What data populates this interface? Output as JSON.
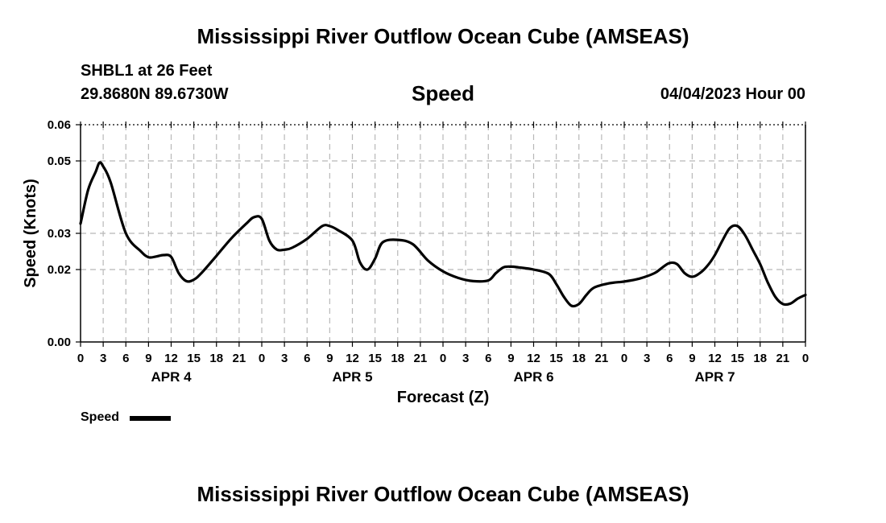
{
  "header": {
    "title": "Mississippi River Outflow Ocean Cube (AMSEAS)",
    "station": "SHBL1 at 26 Feet",
    "coords": "29.8680N  89.6730W",
    "variable": "Speed",
    "datetime": "04/04/2023 Hour 00"
  },
  "footer": {
    "title": "Mississippi River Outflow Ocean Cube (AMSEAS)"
  },
  "legend": {
    "label": "Speed"
  },
  "chart_data": {
    "type": "line",
    "title": "Speed",
    "xlabel": "Forecast (Z)",
    "ylabel": "Speed (Knots)",
    "ylim": [
      0,
      0.06
    ],
    "xlim": [
      0,
      96
    ],
    "grid": true,
    "y_ticks": [
      0,
      0.02,
      0.03,
      0.05,
      0.06
    ],
    "y_tick_labels": [
      "0.00",
      "0.02",
      "0.03",
      "0.05",
      "0.06"
    ],
    "x_ticks": [
      0,
      3,
      6,
      9,
      12,
      15,
      18,
      21,
      24,
      27,
      30,
      33,
      36,
      39,
      42,
      45,
      48,
      51,
      54,
      57,
      60,
      63,
      66,
      69,
      72,
      75,
      78,
      81,
      84,
      87,
      90,
      93,
      96
    ],
    "x_tick_labels": [
      "0",
      "3",
      "6",
      "9",
      "12",
      "15",
      "18",
      "21",
      "0",
      "3",
      "6",
      "9",
      "12",
      "15",
      "18",
      "21",
      "0",
      "3",
      "6",
      "9",
      "12",
      "15",
      "18",
      "21",
      "0",
      "3",
      "6",
      "9",
      "12",
      "15",
      "18",
      "21",
      "0"
    ],
    "day_labels": [
      {
        "label": "APR 4",
        "at": 12
      },
      {
        "label": "APR 5",
        "at": 36
      },
      {
        "label": "APR 6",
        "at": 60
      },
      {
        "label": "APR 7",
        "at": 84
      }
    ],
    "series": [
      {
        "name": "Speed",
        "color": "#000000",
        "x": [
          0,
          1,
          2,
          2.5,
          3,
          4,
          6,
          8,
          9,
          10,
          11,
          12,
          13,
          14,
          15,
          16,
          18,
          20,
          22,
          23,
          24,
          25,
          26,
          27,
          28,
          30,
          32,
          33,
          34,
          36,
          37,
          38,
          39,
          40,
          42,
          44,
          46,
          48,
          50,
          52,
          54,
          55,
          56,
          57,
          58,
          60,
          62,
          63,
          64,
          65,
          66,
          67,
          68,
          70,
          72,
          74,
          76,
          77,
          78,
          79,
          80,
          81,
          82,
          83,
          84,
          85,
          86,
          87,
          88,
          89,
          90,
          91,
          92,
          93,
          94,
          95,
          96
        ],
        "values": [
          0.0327,
          0.042,
          0.047,
          0.0495,
          0.0485,
          0.044,
          0.03,
          0.025,
          0.0234,
          0.0236,
          0.024,
          0.0235,
          0.019,
          0.0168,
          0.0172,
          0.019,
          0.0238,
          0.0287,
          0.0328,
          0.0345,
          0.034,
          0.028,
          0.0255,
          0.0255,
          0.026,
          0.0285,
          0.032,
          0.032,
          0.031,
          0.028,
          0.022,
          0.02,
          0.023,
          0.0275,
          0.0282,
          0.027,
          0.0225,
          0.0195,
          0.0177,
          0.0168,
          0.017,
          0.019,
          0.0206,
          0.0208,
          0.0206,
          0.02,
          0.0188,
          0.016,
          0.0125,
          0.01,
          0.0105,
          0.013,
          0.015,
          0.0162,
          0.0167,
          0.0175,
          0.019,
          0.0205,
          0.0218,
          0.0215,
          0.019,
          0.018,
          0.019,
          0.021,
          0.024,
          0.028,
          0.0315,
          0.032,
          0.0295,
          0.0255,
          0.0215,
          0.0165,
          0.0125,
          0.0105,
          0.0106,
          0.012,
          0.013
        ]
      }
    ]
  }
}
